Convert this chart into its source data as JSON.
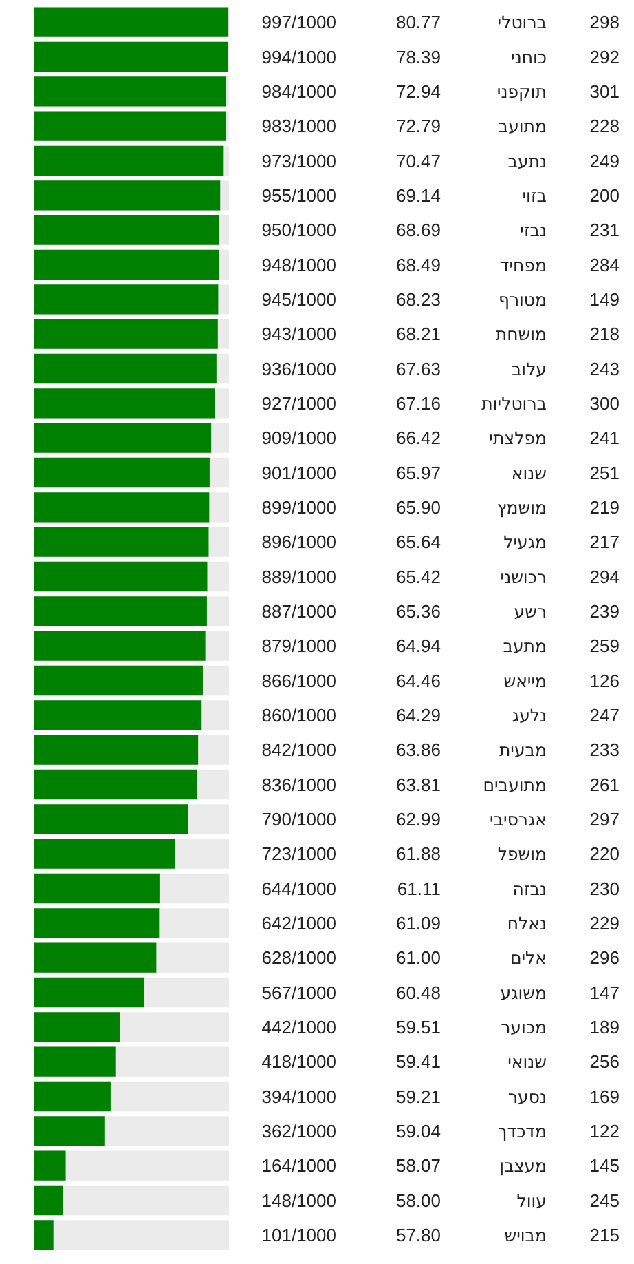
{
  "chart_data": {
    "type": "bar",
    "orientation": "horizontal",
    "xlim": [
      0,
      1000
    ],
    "tick_labels": false,
    "grid": false,
    "color": "#008000",
    "categories": [
      "ברוטלי",
      "כוחני",
      "תוקפני",
      "מתועב",
      "נתעב",
      "בזוי",
      "נבזי",
      "מפחיד",
      "מטורף",
      "מושחת",
      "עלוב",
      "ברוטליות",
      "מפלצתי",
      "שנוא",
      "מושמץ",
      "מגעיל",
      "רכושני",
      "רשע",
      "מתעב",
      "מייאש",
      "נלעג",
      "מבעית",
      "מתועבים",
      "אגרסיבי",
      "מושפל",
      "נבזה",
      "נאלח",
      "אלים",
      "משוגע",
      "מכוער",
      "שנואי",
      "נסער",
      "מדכדך",
      "מעצבן",
      "עוול",
      "מבויש"
    ],
    "values": [
      997,
      994,
      984,
      983,
      973,
      955,
      950,
      948,
      945,
      943,
      936,
      927,
      909,
      901,
      899,
      896,
      889,
      887,
      879,
      866,
      860,
      842,
      836,
      790,
      723,
      644,
      642,
      628,
      567,
      442,
      418,
      394,
      362,
      164,
      148,
      101
    ],
    "value_labels": [
      "997/1000",
      "994/1000",
      "984/1000",
      "983/1000",
      "973/1000",
      "955/1000",
      "950/1000",
      "948/1000",
      "945/1000",
      "943/1000",
      "936/1000",
      "927/1000",
      "909/1000",
      "901/1000",
      "899/1000",
      "896/1000",
      "889/1000",
      "887/1000",
      "879/1000",
      "866/1000",
      "860/1000",
      "842/1000",
      "836/1000",
      "790/1000",
      "723/1000",
      "644/1000",
      "642/1000",
      "628/1000",
      "567/1000",
      "442/1000",
      "418/1000",
      "394/1000",
      "362/1000",
      "164/1000",
      "148/1000",
      "101/1000"
    ],
    "annotations": [
      "80.77",
      "78.39",
      "72.94",
      "72.79",
      "70.47",
      "69.14",
      "68.69",
      "68.49",
      "68.23",
      "68.21",
      "67.63",
      "67.16",
      "66.42",
      "65.97",
      "65.90",
      "65.64",
      "65.42",
      "65.36",
      "64.94",
      "64.46",
      "64.29",
      "63.86",
      "63.81",
      "62.99",
      "61.88",
      "61.11",
      "61.09",
      "61.00",
      "60.48",
      "59.51",
      "59.41",
      "59.21",
      "59.04",
      "58.07",
      "58.00",
      "57.80",
      "298",
      "292",
      "301",
      "228",
      "249",
      "200",
      "231",
      "284",
      "149",
      "218",
      "243",
      "300",
      "241",
      "251",
      "219",
      "217",
      "294",
      "239",
      "259",
      "126",
      "247",
      "233",
      "261",
      "297",
      "220",
      "230",
      "229",
      "296",
      "147",
      "189",
      "256",
      "169",
      "122",
      "145",
      "245",
      "215"
    ]
  }
}
